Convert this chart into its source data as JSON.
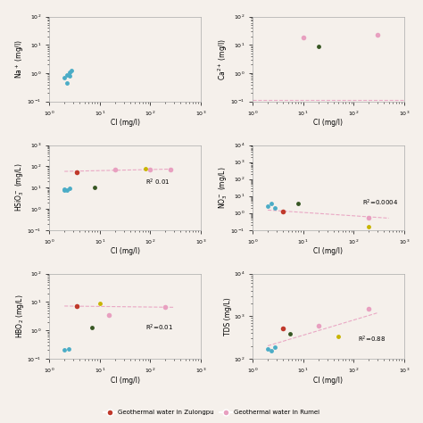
{
  "subplots": [
    {
      "ylabel": "Na$^+$ (mg/l)",
      "xlabel": "Cl (mg/l)",
      "xlim": [
        1,
        1000
      ],
      "ylim": [
        0.1,
        100
      ],
      "r2_text": null,
      "trendline": false,
      "trendline_x": [],
      "trendline_y": [],
      "blue_points": [
        [
          2.0,
          0.7
        ],
        [
          2.2,
          0.85
        ],
        [
          2.5,
          1.1
        ],
        [
          2.8,
          1.2
        ],
        [
          2.5,
          0.8
        ],
        [
          2.2,
          0.45
        ]
      ],
      "red_points": [],
      "pink_points": [],
      "green_points": [],
      "yellow_points": []
    },
    {
      "ylabel": "Ca$^{2+}$ (mg/l)",
      "xlabel": "Cl (mg/l)",
      "xlim": [
        1,
        1000
      ],
      "ylim": [
        0.1,
        100
      ],
      "r2_text": null,
      "trendline": true,
      "trendline_x": [
        1,
        1000
      ],
      "trendline_y": [
        0.11,
        0.11
      ],
      "blue_points": [],
      "red_points": [],
      "pink_points": [
        [
          10,
          18
        ],
        [
          300,
          22
        ]
      ],
      "green_points": [
        [
          20,
          9
        ]
      ],
      "yellow_points": []
    },
    {
      "ylabel": "HSiO$_3^-$ (mg/L)",
      "xlabel": "Cl (mg/l)",
      "xlim": [
        1,
        1000
      ],
      "ylim": [
        0.1,
        1000
      ],
      "r2_text": "R$^2$ 0.01",
      "r2_x": 80,
      "r2_y": 18,
      "trendline": true,
      "trendline_x": [
        2,
        300
      ],
      "trendline_y": [
        58,
        75
      ],
      "blue_points": [
        [
          2.0,
          8.5
        ],
        [
          2.2,
          8.0
        ],
        [
          2.5,
          9.2
        ],
        [
          2.0,
          7.5
        ]
      ],
      "red_points": [
        [
          3.5,
          55
        ]
      ],
      "pink_points": [
        [
          20,
          70
        ],
        [
          100,
          72
        ],
        [
          250,
          68
        ]
      ],
      "green_points": [
        [
          8,
          10
        ]
      ],
      "yellow_points": [
        [
          80,
          80
        ]
      ]
    },
    {
      "ylabel": "NO$_3^-$ (mg/L)",
      "xlabel": "Cl (mg/l)",
      "xlim": [
        1,
        1000
      ],
      "ylim": [
        0.1,
        10000
      ],
      "r2_text": "R$^2$=0.0004",
      "r2_x": 150,
      "r2_y": 4,
      "trendline": true,
      "trendline_x": [
        2,
        500
      ],
      "trendline_y": [
        1.5,
        0.5
      ],
      "blue_points": [
        [
          2.0,
          2.5
        ],
        [
          2.3,
          3.5
        ],
        [
          2.8,
          2.0
        ]
      ],
      "red_points": [
        [
          4.0,
          1.2
        ]
      ],
      "pink_points": [
        [
          200,
          0.5
        ]
      ],
      "green_points": [
        [
          8,
          3.5
        ]
      ],
      "yellow_points": [
        [
          200,
          0.15
        ]
      ]
    },
    {
      "ylabel": "HBO$_2$ (mg/L)",
      "xlabel": "Cl (mg/l)",
      "xlim": [
        1,
        1000
      ],
      "ylim": [
        0.1,
        100
      ],
      "r2_text": "R$^2$=0.01",
      "r2_x": 80,
      "r2_y": 1.2,
      "trendline": true,
      "trendline_x": [
        2,
        300
      ],
      "trendline_y": [
        7.2,
        6.5
      ],
      "blue_points": [
        [
          2.0,
          0.2
        ],
        [
          2.4,
          0.22
        ]
      ],
      "red_points": [
        [
          3.5,
          7.0
        ]
      ],
      "pink_points": [
        [
          15,
          3.5
        ],
        [
          200,
          6.5
        ]
      ],
      "green_points": [
        [
          7,
          1.3
        ]
      ],
      "yellow_points": [
        [
          10,
          9.2
        ]
      ]
    },
    {
      "ylabel": "TDS (mg/L)",
      "xlabel": "Cl (mg/l)",
      "xlim": [
        1,
        1000
      ],
      "ylim": [
        100,
        10000
      ],
      "r2_text": "R$^2$=0.88",
      "r2_x": 120,
      "r2_y": 280,
      "trendline": true,
      "trendline_x": [
        2,
        300
      ],
      "trendline_y": [
        200,
        1200
      ],
      "blue_points": [
        [
          2.0,
          170
        ],
        [
          2.3,
          155
        ],
        [
          2.8,
          190
        ]
      ],
      "red_points": [
        [
          4.0,
          520
        ]
      ],
      "pink_points": [
        [
          20,
          600
        ],
        [
          200,
          1500
        ]
      ],
      "green_points": [
        [
          5.5,
          380
        ]
      ],
      "yellow_points": [
        [
          50,
          340
        ]
      ]
    }
  ],
  "blue_color": "#4bacc6",
  "red_color": "#c0392b",
  "pink_color": "#e8a0c0",
  "green_color": "#375623",
  "yellow_color": "#c8b400",
  "trendline_color": "#e8a0c0",
  "bg_color": "#f5f0eb",
  "fig_bg_color": "#f5f0eb"
}
